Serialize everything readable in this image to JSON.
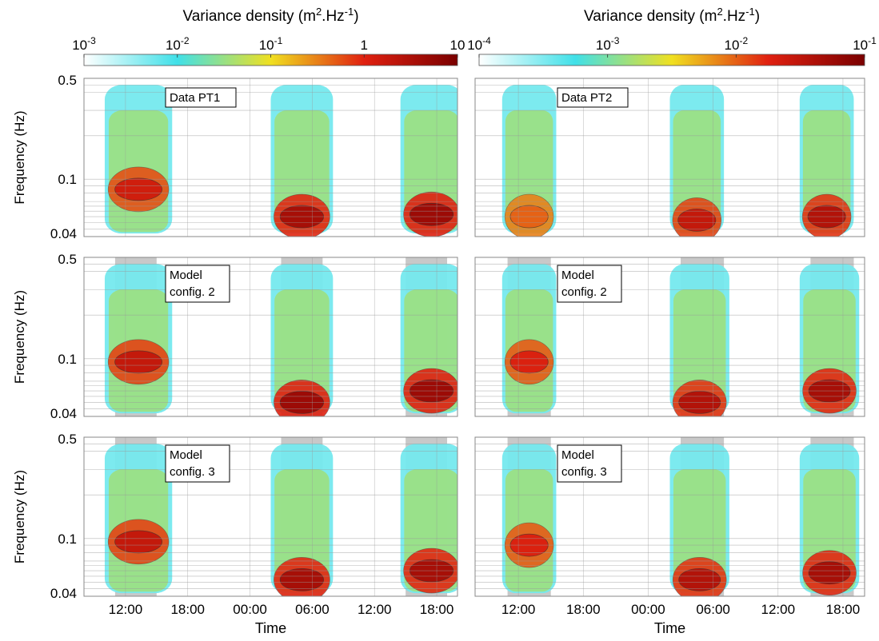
{
  "chart_data": {
    "type": "heatmap",
    "colormap": [
      "#ffffff",
      "#40e0e8",
      "#f0e020",
      "#e02010",
      "#7a0000"
    ],
    "shading_color": "#c8c8c8",
    "colorbars": [
      {
        "column": "left",
        "title": "Variance density (m",
        "title_sup1": "2",
        "title_mid": ".Hz",
        "title_sup2": "-1",
        "title_end": ")",
        "scale": "log",
        "range": [
          0.001,
          10
        ],
        "tick_values": [
          0.001,
          0.01,
          0.1,
          1,
          10
        ],
        "ticks": [
          {
            "base": "10",
            "exp": "-3"
          },
          {
            "base": "10",
            "exp": "-2"
          },
          {
            "base": "10",
            "exp": "-1"
          },
          {
            "base": "1",
            "exp": ""
          },
          {
            "base": "10",
            "exp": ""
          }
        ]
      },
      {
        "column": "right",
        "title": "Variance density (m",
        "title_sup1": "2",
        "title_mid": ".Hz",
        "title_sup2": "-1",
        "title_end": ")",
        "scale": "log",
        "range": [
          0.0001,
          0.1
        ],
        "tick_values": [
          0.0001,
          0.001,
          0.01,
          0.1
        ],
        "ticks": [
          {
            "base": "10",
            "exp": "-4"
          },
          {
            "base": "10",
            "exp": "-3"
          },
          {
            "base": "10",
            "exp": "-2"
          },
          {
            "base": "10",
            "exp": "-1"
          }
        ]
      }
    ],
    "y_axis": {
      "label": "Frequency (Hz)",
      "scale": "log",
      "range": [
        0.04,
        0.5
      ],
      "tick_values": [
        0.04,
        0.1,
        0.5
      ],
      "tick_labels": [
        "0.04",
        "0.1",
        "0.5"
      ]
    },
    "x_axis": {
      "label": "Time",
      "range_hours": [
        8,
        44
      ],
      "tick_hours": [
        12,
        18,
        24,
        30,
        36,
        42
      ],
      "tick_labels": [
        "12:00",
        "18:00",
        "00:00",
        "06:00",
        "12:00",
        "18:00"
      ]
    },
    "panels": [
      {
        "row": 0,
        "col": 0,
        "label": [
          "Data PT1"
        ],
        "shaded": false,
        "bursts": [
          {
            "t_start": 10.0,
            "t_end": 16.5,
            "peak_freq": 0.085,
            "peak_value": 1.5
          },
          {
            "t_start": 26.0,
            "t_end": 32.0,
            "peak_freq": 0.055,
            "peak_value": 4.0
          },
          {
            "t_start": 38.5,
            "t_end": 44.5,
            "peak_freq": 0.057,
            "peak_value": 5.0
          }
        ]
      },
      {
        "row": 0,
        "col": 1,
        "label": [
          "Data PT2"
        ],
        "shaded": false,
        "bursts": [
          {
            "t_start": 10.5,
            "t_end": 15.5,
            "peak_freq": 0.055,
            "peak_value": 0.01
          },
          {
            "t_start": 26.0,
            "t_end": 31.0,
            "peak_freq": 0.052,
            "peak_value": 0.03
          },
          {
            "t_start": 38.0,
            "t_end": 43.0,
            "peak_freq": 0.055,
            "peak_value": 0.04
          }
        ]
      },
      {
        "row": 1,
        "col": 0,
        "label": [
          "Model",
          "config. 2"
        ],
        "shaded": true,
        "bursts": [
          {
            "t_start": 10.0,
            "t_end": 16.5,
            "peak_freq": 0.095,
            "peak_value": 2.0
          },
          {
            "t_start": 26.0,
            "t_end": 32.0,
            "peak_freq": 0.05,
            "peak_value": 5.0
          },
          {
            "t_start": 38.5,
            "t_end": 44.5,
            "peak_freq": 0.06,
            "peak_value": 5.0
          }
        ]
      },
      {
        "row": 1,
        "col": 1,
        "label": [
          "Model",
          "config. 2"
        ],
        "shaded": true,
        "bursts": [
          {
            "t_start": 10.5,
            "t_end": 15.5,
            "peak_freq": 0.095,
            "peak_value": 0.02
          },
          {
            "t_start": 26.0,
            "t_end": 31.5,
            "peak_freq": 0.05,
            "peak_value": 0.04
          },
          {
            "t_start": 38.0,
            "t_end": 43.5,
            "peak_freq": 0.06,
            "peak_value": 0.05
          }
        ]
      },
      {
        "row": 2,
        "col": 0,
        "label": [
          "Model",
          "config. 3"
        ],
        "shaded": true,
        "bursts": [
          {
            "t_start": 10.0,
            "t_end": 16.5,
            "peak_freq": 0.095,
            "peak_value": 2.0
          },
          {
            "t_start": 26.0,
            "t_end": 32.0,
            "peak_freq": 0.052,
            "peak_value": 4.0
          },
          {
            "t_start": 38.5,
            "t_end": 44.5,
            "peak_freq": 0.06,
            "peak_value": 4.0
          }
        ]
      },
      {
        "row": 2,
        "col": 1,
        "label": [
          "Model",
          "config. 3"
        ],
        "shaded": true,
        "bursts": [
          {
            "t_start": 10.5,
            "t_end": 15.5,
            "peak_freq": 0.09,
            "peak_value": 0.02
          },
          {
            "t_start": 26.0,
            "t_end": 31.5,
            "peak_freq": 0.052,
            "peak_value": 0.04
          },
          {
            "t_start": 38.0,
            "t_end": 43.5,
            "peak_freq": 0.058,
            "peak_value": 0.05
          }
        ]
      }
    ],
    "shaded_intervals_hours": [
      [
        11,
        15
      ],
      [
        27,
        31
      ],
      [
        39,
        43
      ]
    ]
  }
}
